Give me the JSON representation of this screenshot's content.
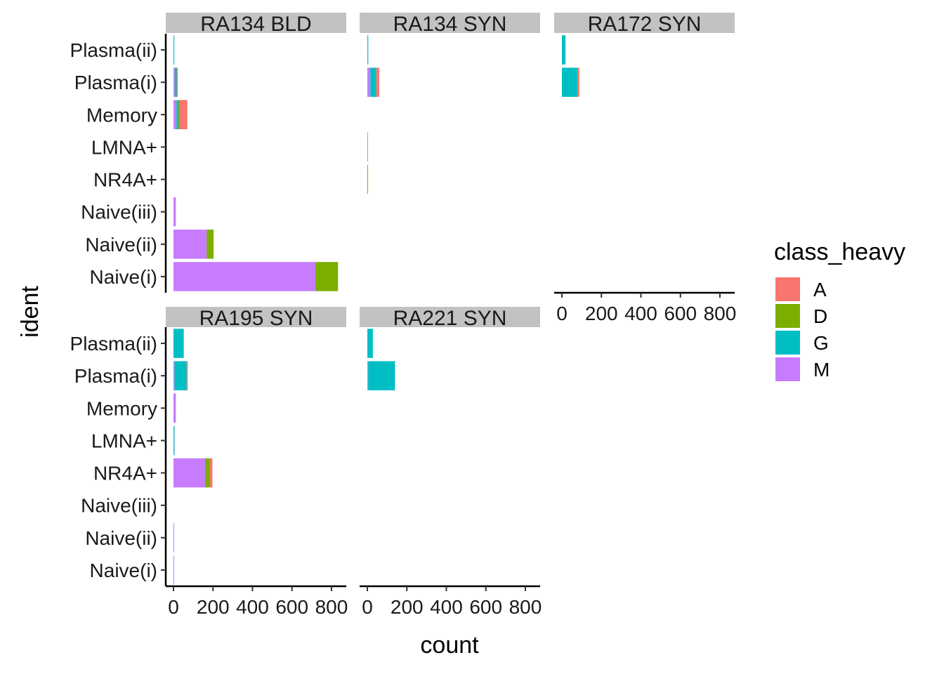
{
  "chart_data": {
    "type": "bar",
    "orientation": "horizontal",
    "stacked": true,
    "xlabel": "count",
    "ylabel": "ident",
    "xlim": [
      0,
      850
    ],
    "x_ticks": [
      "0",
      "200",
      "400",
      "600",
      "800"
    ],
    "x_tick_values": [
      0,
      200,
      400,
      600,
      800
    ],
    "categories": [
      "Plasma(ii)",
      "Plasma(i)",
      "Memory",
      "LMNA+",
      "NR4A+",
      "Naive(iii)",
      "Naive(ii)",
      "Naive(i)"
    ],
    "stack_order": [
      "M",
      "G",
      "D",
      "A"
    ],
    "legend": {
      "title": "class_heavy",
      "position": "right",
      "entries": [
        {
          "key": "A",
          "label": "A",
          "color": "#F8766D"
        },
        {
          "key": "D",
          "label": "D",
          "color": "#7CAE00"
        },
        {
          "key": "G",
          "label": "G",
          "color": "#00BFC4"
        },
        {
          "key": "M",
          "label": "M",
          "color": "#C77CFF"
        }
      ]
    },
    "grid": false,
    "panels": [
      {
        "title": "RA134  BLD",
        "values": {
          "Plasma(ii)": {
            "G": 4
          },
          "Plasma(i)": {
            "M": 6,
            "G": 10,
            "A": 6
          },
          "Memory": {
            "M": 15,
            "G": 10,
            "D": 7,
            "A": 38
          },
          "LMNA+": {},
          "NR4A+": {},
          "Naive(iii)": {
            "M": 12
          },
          "Naive(ii)": {
            "M": 168,
            "D": 35
          },
          "Naive(i)": {
            "M": 718,
            "D": 115
          }
        }
      },
      {
        "title": "RA134  SYN",
        "values": {
          "Plasma(ii)": {
            "M": 1,
            "G": 1
          },
          "Plasma(i)": {
            "M": 15,
            "G": 30,
            "A": 15
          },
          "Memory": {},
          "LMNA+": {
            "M": 3
          },
          "NR4A+": {
            "D": 2
          },
          "Naive(iii)": {},
          "Naive(ii)": {},
          "Naive(i)": {}
        }
      },
      {
        "title": "RA172  SYN",
        "values": {
          "Plasma(ii)": {
            "G": 18
          },
          "Plasma(i)": {
            "G": 78,
            "A": 10
          },
          "Memory": {},
          "LMNA+": {},
          "NR4A+": {},
          "Naive(iii)": {},
          "Naive(ii)": {},
          "Naive(i)": {}
        }
      },
      {
        "title": "RA195  SYN",
        "values": {
          "Plasma(ii)": {
            "G": 52
          },
          "Plasma(i)": {
            "M": 5,
            "G": 62,
            "A": 5
          },
          "Memory": {
            "M": 12
          },
          "LMNA+": {
            "M": 2,
            "G": 2
          },
          "NR4A+": {
            "M": 160,
            "D": 25,
            "A": 12
          },
          "Naive(iii)": {},
          "Naive(ii)": {
            "M": 3
          },
          "Naive(i)": {
            "M": 3
          }
        }
      },
      {
        "title": "RA221  SYN",
        "values": {
          "Plasma(ii)": {
            "G": 28
          },
          "Plasma(i)": {
            "M": 4,
            "G": 136
          },
          "Memory": {},
          "LMNA+": {},
          "NR4A+": {},
          "Naive(iii)": {},
          "Naive(ii)": {},
          "Naive(i)": {}
        }
      }
    ]
  }
}
